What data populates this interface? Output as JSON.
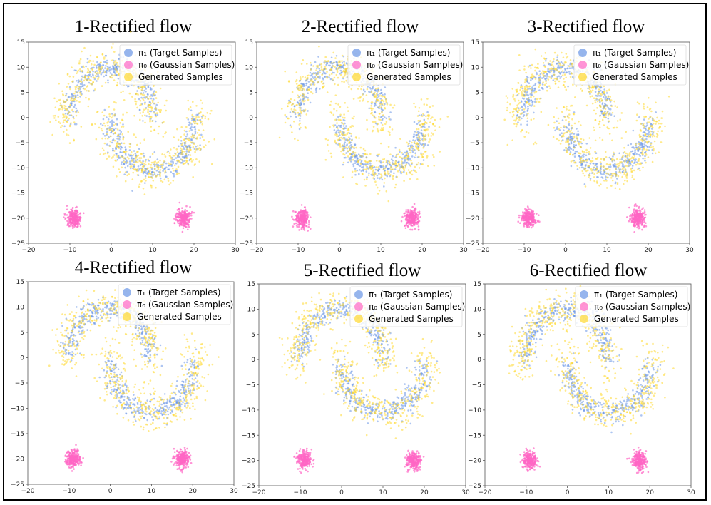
{
  "figure": {
    "panels": [
      {
        "title": "1-Rectified flow"
      },
      {
        "title": "2-Rectified flow"
      },
      {
        "title": "3-Rectified flow"
      },
      {
        "title": "4-Rectified flow"
      },
      {
        "title": "5-Rectified flow"
      },
      {
        "title": "6-Rectified flow"
      }
    ]
  },
  "colors": {
    "target": "#6a96e6",
    "gaussian": "#ff66c4",
    "generated": "#ffd92e"
  },
  "chart_data": [
    {
      "type": "scatter",
      "title": "1-Rectified flow",
      "xlim": [
        -20,
        30
      ],
      "ylim": [
        -25,
        15
      ],
      "xticks": [
        -20,
        -10,
        0,
        10,
        20,
        30
      ],
      "yticks": [
        15,
        10,
        5,
        0,
        -5,
        -10,
        -15,
        -20,
        -25
      ],
      "legend": [
        "π₁ (Target Samples)",
        "π₀ (Gaussian Samples)",
        "Generated Samples"
      ],
      "legend_loc": "top-right",
      "series": [
        {
          "name": "π₁ (Target Samples)",
          "shape": "two interleaved moons",
          "left_moon_center": [
            0,
            0
          ],
          "radius": 10
        },
        {
          "name": "π₀ (Gaussian Samples)",
          "clusters": [
            [
              -9,
              -20
            ],
            [
              17.5,
              -20
            ]
          ],
          "std": 1
        },
        {
          "name": "Generated Samples",
          "shape": "blurred moons"
        }
      ]
    },
    {
      "type": "scatter",
      "title": "2-Rectified flow",
      "xlim": [
        -20,
        30
      ],
      "ylim": [
        -25,
        15
      ],
      "xticks": [
        -20,
        -10,
        0,
        10,
        20,
        30
      ],
      "yticks": [
        15,
        10,
        5,
        0,
        -5,
        -10,
        -15,
        -20,
        -25
      ],
      "legend": [
        "π₁ (Target Samples)",
        "π₀ (Gaussian Samples)",
        "Generated Samples"
      ],
      "legend_loc": "top-right",
      "series": [
        {
          "name": "π₁ (Target Samples)",
          "shape": "two interleaved moons",
          "left_moon_center": [
            0,
            0
          ],
          "radius": 10
        },
        {
          "name": "π₀ (Gaussian Samples)",
          "clusters": [
            [
              -9,
              -20
            ],
            [
              17.5,
              -20
            ]
          ],
          "std": 1
        },
        {
          "name": "Generated Samples",
          "shape": "blurred moons"
        }
      ]
    },
    {
      "type": "scatter",
      "title": "3-Rectified flow",
      "xlim": [
        -20,
        30
      ],
      "ylim": [
        -25,
        15
      ],
      "xticks": [
        -20,
        -10,
        0,
        10,
        20,
        30
      ],
      "yticks": [
        15,
        10,
        5,
        0,
        -5,
        -10,
        -15,
        -20,
        -25
      ],
      "legend": [
        "π₁ (Target Samples)",
        "π₀ (Gaussian Samples)",
        "Generated Samples"
      ],
      "legend_loc": "top-right",
      "series": [
        {
          "name": "π₁ (Target Samples)",
          "shape": "two interleaved moons",
          "left_moon_center": [
            0,
            0
          ],
          "radius": 10
        },
        {
          "name": "π₀ (Gaussian Samples)",
          "clusters": [
            [
              -9,
              -20
            ],
            [
              17.5,
              -20
            ]
          ],
          "std": 1
        },
        {
          "name": "Generated Samples",
          "shape": "blurred moons"
        }
      ]
    },
    {
      "type": "scatter",
      "title": "4-Rectified flow",
      "xlim": [
        -20,
        30
      ],
      "ylim": [
        -25,
        15
      ],
      "xticks": [
        -20,
        -10,
        0,
        10,
        20,
        30
      ],
      "yticks": [
        15,
        10,
        5,
        0,
        -5,
        -10,
        -15,
        -20,
        -25
      ],
      "legend": [
        "π₁ (Target Samples)",
        "π₀ (Gaussian Samples)",
        "Generated Samples"
      ],
      "legend_loc": "top-right",
      "series": [
        {
          "name": "π₁ (Target Samples)",
          "shape": "two interleaved moons",
          "left_moon_center": [
            0,
            0
          ],
          "radius": 10
        },
        {
          "name": "π₀ (Gaussian Samples)",
          "clusters": [
            [
              -9,
              -20
            ],
            [
              17.5,
              -20
            ]
          ],
          "std": 1
        },
        {
          "name": "Generated Samples",
          "shape": "blurred moons"
        }
      ]
    },
    {
      "type": "scatter",
      "title": "5-Rectified flow",
      "xlim": [
        -20,
        30
      ],
      "ylim": [
        -25,
        15
      ],
      "xticks": [
        -20,
        -10,
        0,
        10,
        20,
        30
      ],
      "yticks": [
        15,
        10,
        5,
        0,
        -5,
        -10,
        -15,
        -20,
        -25
      ],
      "legend": [
        "π₁ (Target Samples)",
        "π₀ (Gaussian Samples)",
        "Generated Samples"
      ],
      "legend_loc": "top-right",
      "series": [
        {
          "name": "π₁ (Target Samples)",
          "shape": "two interleaved moons",
          "left_moon_center": [
            0,
            0
          ],
          "radius": 10
        },
        {
          "name": "π₀ (Gaussian Samples)",
          "clusters": [
            [
              -9,
              -20
            ],
            [
              17.5,
              -20
            ]
          ],
          "std": 1
        },
        {
          "name": "Generated Samples",
          "shape": "blurred moons"
        }
      ]
    },
    {
      "type": "scatter",
      "title": "6-Rectified flow",
      "xlim": [
        -20,
        30
      ],
      "ylim": [
        -25,
        15
      ],
      "xticks": [
        -20,
        -10,
        0,
        10,
        20,
        30
      ],
      "yticks": [
        15,
        10,
        5,
        0,
        -5,
        -10,
        -15,
        -20,
        -25
      ],
      "legend": [
        "π₁ (Target Samples)",
        "π₀ (Gaussian Samples)",
        "Generated Samples"
      ],
      "legend_loc": "top-right",
      "series": [
        {
          "name": "π₁ (Target Samples)",
          "shape": "two interleaved moons",
          "left_moon_center": [
            0,
            0
          ],
          "radius": 10
        },
        {
          "name": "π₀ (Gaussian Samples)",
          "clusters": [
            [
              -9,
              -20
            ],
            [
              17.5,
              -20
            ]
          ],
          "std": 1
        },
        {
          "name": "Generated Samples",
          "shape": "blurred moons"
        }
      ]
    }
  ]
}
